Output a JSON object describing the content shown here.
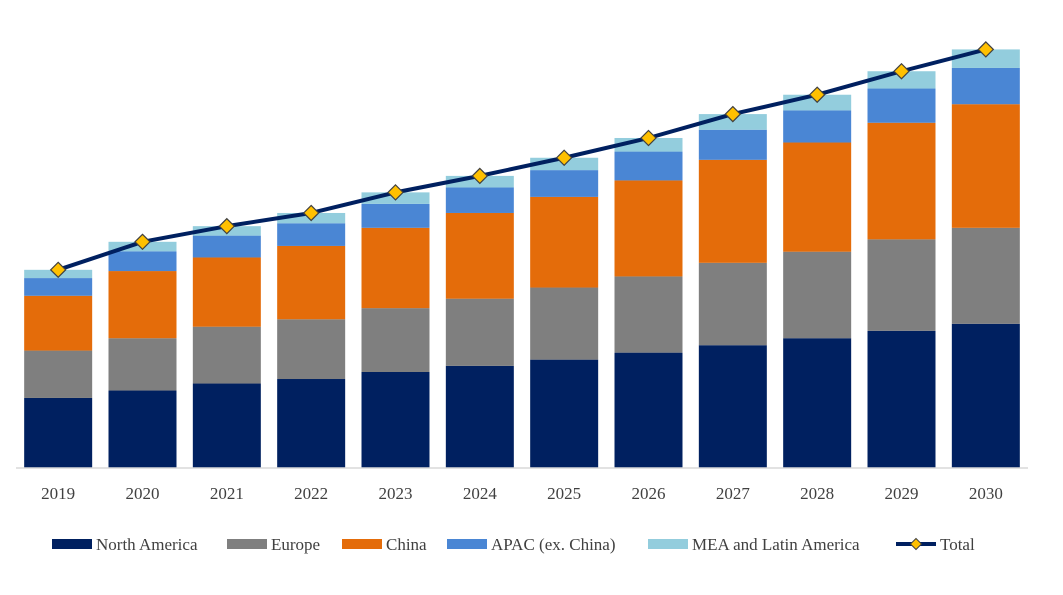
{
  "chart_data": {
    "type": "bar",
    "stacked": true,
    "title": "",
    "xlabel": "",
    "ylabel": "",
    "ylim": [
      0,
      100
    ],
    "grid": false,
    "legend_position": "bottom",
    "categories": [
      "2019",
      "2020",
      "2021",
      "2022",
      "2023",
      "2024",
      "2025",
      "2026",
      "2027",
      "2028",
      "2029",
      "2030"
    ],
    "series": [
      {
        "name": "North America",
        "color": "#002060",
        "values": [
          17.0,
          18.8,
          20.5,
          21.6,
          23.3,
          24.8,
          26.3,
          28.0,
          29.8,
          31.5,
          33.3,
          35.0
        ]
      },
      {
        "name": "Europe",
        "color": "#7F7F7F",
        "values": [
          11.5,
          12.7,
          13.8,
          14.5,
          15.5,
          16.3,
          17.5,
          18.5,
          20.0,
          21.0,
          22.2,
          23.3
        ]
      },
      {
        "name": "China",
        "color": "#E46C0A",
        "values": [
          13.3,
          16.3,
          16.8,
          17.8,
          19.5,
          20.8,
          22.0,
          23.3,
          25.0,
          26.5,
          28.3,
          30.0
        ]
      },
      {
        "name": "APAC (ex. China)",
        "color": "#4A86D4",
        "values": [
          4.3,
          4.8,
          5.3,
          5.5,
          5.8,
          6.2,
          6.5,
          7.0,
          7.3,
          7.8,
          8.3,
          8.8
        ]
      },
      {
        "name": "MEA and Latin America",
        "color": "#93CDDD",
        "values": [
          2.0,
          2.3,
          2.3,
          2.5,
          2.8,
          2.8,
          3.0,
          3.3,
          3.8,
          3.8,
          4.2,
          4.5
        ]
      }
    ],
    "total": {
      "name": "Total",
      "line_color": "#002060",
      "marker_color": "#FFC000",
      "values": [
        48.1,
        54.9,
        58.7,
        61.9,
        66.9,
        70.9,
        75.3,
        80.1,
        85.9,
        90.6,
        96.3,
        101.6
      ]
    }
  }
}
